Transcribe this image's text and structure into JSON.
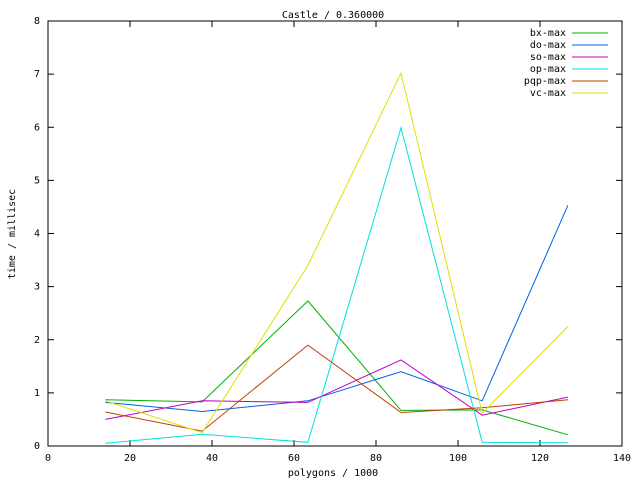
{
  "chart_data": {
    "type": "line",
    "title": "Castle / 0.360000",
    "xlabel": "polygons / 1000",
    "ylabel": "time / millisec",
    "x": [
      14,
      37.6,
      63.4,
      86.1,
      105.9,
      126.8
    ],
    "series": [
      {
        "name": "bx-max",
        "color": "#00b000",
        "values": [
          0.87,
          0.83,
          2.73,
          0.67,
          0.68,
          0.21
        ]
      },
      {
        "name": "do-max",
        "color": "#0060e0",
        "values": [
          0.82,
          0.65,
          0.85,
          1.4,
          0.85,
          4.53
        ]
      },
      {
        "name": "so-max",
        "color": "#c000c0",
        "values": [
          0.5,
          0.85,
          0.82,
          1.62,
          0.58,
          0.92
        ]
      },
      {
        "name": "op-max",
        "color": "#00e0e0",
        "values": [
          0.05,
          0.22,
          0.07,
          5.99,
          0.07,
          0.06
        ]
      },
      {
        "name": "pqp-max",
        "color": "#c04000",
        "values": [
          0.64,
          0.28,
          1.9,
          0.63,
          0.72,
          0.87
        ]
      },
      {
        "name": "vc-max",
        "color": "#e0e000",
        "values": [
          0.85,
          0.25,
          3.4,
          7.02,
          0.62,
          2.25
        ]
      }
    ],
    "xlim": [
      0,
      140
    ],
    "xticks": [
      0,
      20,
      40,
      60,
      80,
      100,
      120,
      140
    ],
    "ylim": [
      0,
      8
    ],
    "yticks": [
      0,
      1,
      2,
      3,
      4,
      5,
      6,
      7,
      8
    ],
    "grid": false,
    "legend": "top-right"
  }
}
